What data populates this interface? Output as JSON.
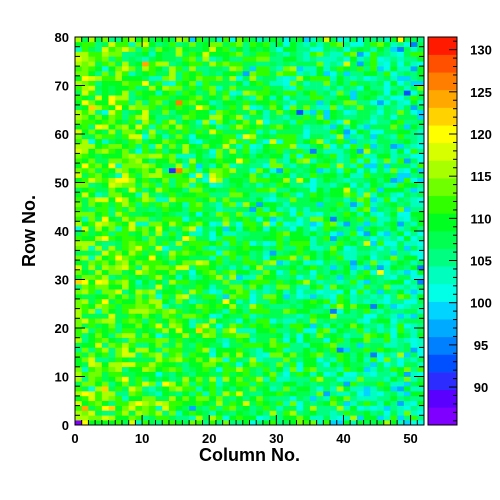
{
  "chart_data": {
    "type": "heatmap",
    "xlabel": "Column No.",
    "ylabel": "Row No.",
    "x_range": [
      0,
      52
    ],
    "y_range": [
      0,
      80
    ],
    "x_bins": 52,
    "y_bins": 80,
    "x_ticks": [
      "0",
      "10",
      "20",
      "30",
      "40",
      "50"
    ],
    "y_ticks": [
      "0",
      "10",
      "20",
      "30",
      "40",
      "50",
      "60",
      "70",
      "80"
    ],
    "z_range": [
      85.5,
      131.5
    ],
    "colorbar_ticks": [
      "90",
      "95",
      "100",
      "105",
      "110",
      "115",
      "120",
      "125",
      "130"
    ],
    "mean_left": 112,
    "mean_right": 105,
    "noise": 4,
    "palette": [
      "#7f00ff",
      "#5a00ff",
      "#2c2cff",
      "#0050ff",
      "#0080ff",
      "#00aaff",
      "#00d4ff",
      "#00ffe6",
      "#00ffbf",
      "#00ff80",
      "#00ff50",
      "#00ff20",
      "#30ff00",
      "#70ff00",
      "#a8ff00",
      "#d8ff00",
      "#ffff00",
      "#ffd200",
      "#ffa800",
      "#ff7e00",
      "#ff5000",
      "#ff1a00"
    ],
    "outliers": [
      {
        "col": 0,
        "row": 0,
        "value": 87
      },
      {
        "col": 1,
        "row": 3,
        "value": 124
      },
      {
        "col": 14,
        "row": 52,
        "value": 91
      },
      {
        "col": 15,
        "row": 52,
        "value": 127
      },
      {
        "col": 15,
        "row": 66,
        "value": 126
      },
      {
        "col": 22,
        "row": 25,
        "value": 120
      },
      {
        "col": 26,
        "row": 44,
        "value": 96
      },
      {
        "col": 27,
        "row": 45,
        "value": 98
      },
      {
        "col": 33,
        "row": 64,
        "value": 92
      },
      {
        "col": 35,
        "row": 56,
        "value": 95
      },
      {
        "col": 17,
        "row": 3,
        "value": 96
      },
      {
        "col": 20,
        "row": 50,
        "value": 120
      },
      {
        "col": 39,
        "row": 15,
        "value": 94
      },
      {
        "col": 44,
        "row": 24,
        "value": 95
      },
      {
        "col": 49,
        "row": 68,
        "value": 93
      },
      {
        "col": 50,
        "row": 78,
        "value": 95
      },
      {
        "col": 38,
        "row": 42,
        "value": 94
      },
      {
        "col": 41,
        "row": 45,
        "value": 96
      },
      {
        "col": 30,
        "row": 52,
        "value": 96
      },
      {
        "col": 37,
        "row": 6,
        "value": 96
      },
      {
        "col": 42,
        "row": 76,
        "value": 96
      },
      {
        "col": 48,
        "row": 79,
        "value": 120
      },
      {
        "col": 45,
        "row": 31,
        "value": 120
      },
      {
        "col": 5,
        "row": 66,
        "value": 121
      },
      {
        "col": 10,
        "row": 74,
        "value": 124
      }
    ]
  }
}
